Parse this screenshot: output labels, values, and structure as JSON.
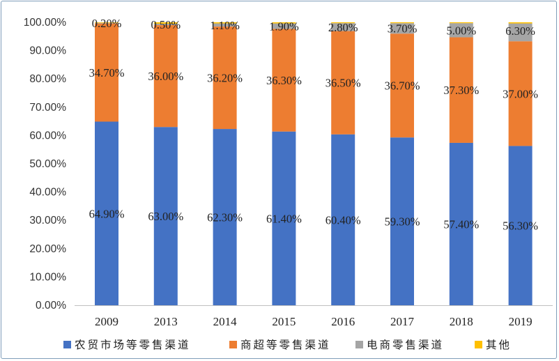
{
  "chart_data": {
    "type": "bar",
    "stacked": true,
    "categories": [
      "2009",
      "2013",
      "2014",
      "2015",
      "2016",
      "2017",
      "2018",
      "2019"
    ],
    "series": [
      {
        "name": "农贸市场等零售渠道",
        "color": "#4472C4",
        "values": [
          64.9,
          63.0,
          62.3,
          61.4,
          60.4,
          59.3,
          57.4,
          56.3
        ],
        "labels": [
          "64.90%",
          "63.00%",
          "62.30%",
          "61.40%",
          "60.40%",
          "59.30%",
          "57.40%",
          "56.30%"
        ]
      },
      {
        "name": "商超等零售渠道",
        "color": "#ED7D31",
        "values": [
          34.7,
          36.0,
          36.2,
          36.3,
          36.5,
          36.7,
          37.3,
          37.0
        ],
        "labels": [
          "34.70%",
          "36.00%",
          "36.20%",
          "36.30%",
          "36.50%",
          "36.70%",
          "37.30%",
          "37.00%"
        ]
      },
      {
        "name": "电商零售渠道",
        "color": "#A5A5A5",
        "values": [
          0.2,
          0.5,
          1.1,
          1.9,
          2.8,
          3.7,
          5.0,
          6.3
        ],
        "labels": [
          "0.20%",
          "0.50%",
          "1.10%",
          "1.90%",
          "2.80%",
          "3.70%",
          "5.00%",
          "6.30%"
        ]
      },
      {
        "name": "其他",
        "color": "#FFC000",
        "values": [
          0.2,
          0.5,
          0.4,
          0.4,
          0.3,
          0.3,
          0.3,
          0.4
        ]
      }
    ],
    "ylim": [
      0,
      100
    ],
    "yticks": [
      "0.00%",
      "10.00%",
      "20.00%",
      "30.00%",
      "40.00%",
      "50.00%",
      "60.00%",
      "70.00%",
      "80.00%",
      "90.00%",
      "100.00%"
    ],
    "grid": false,
    "legend_position": "bottom",
    "title": "",
    "xlabel": "",
    "ylabel": ""
  }
}
